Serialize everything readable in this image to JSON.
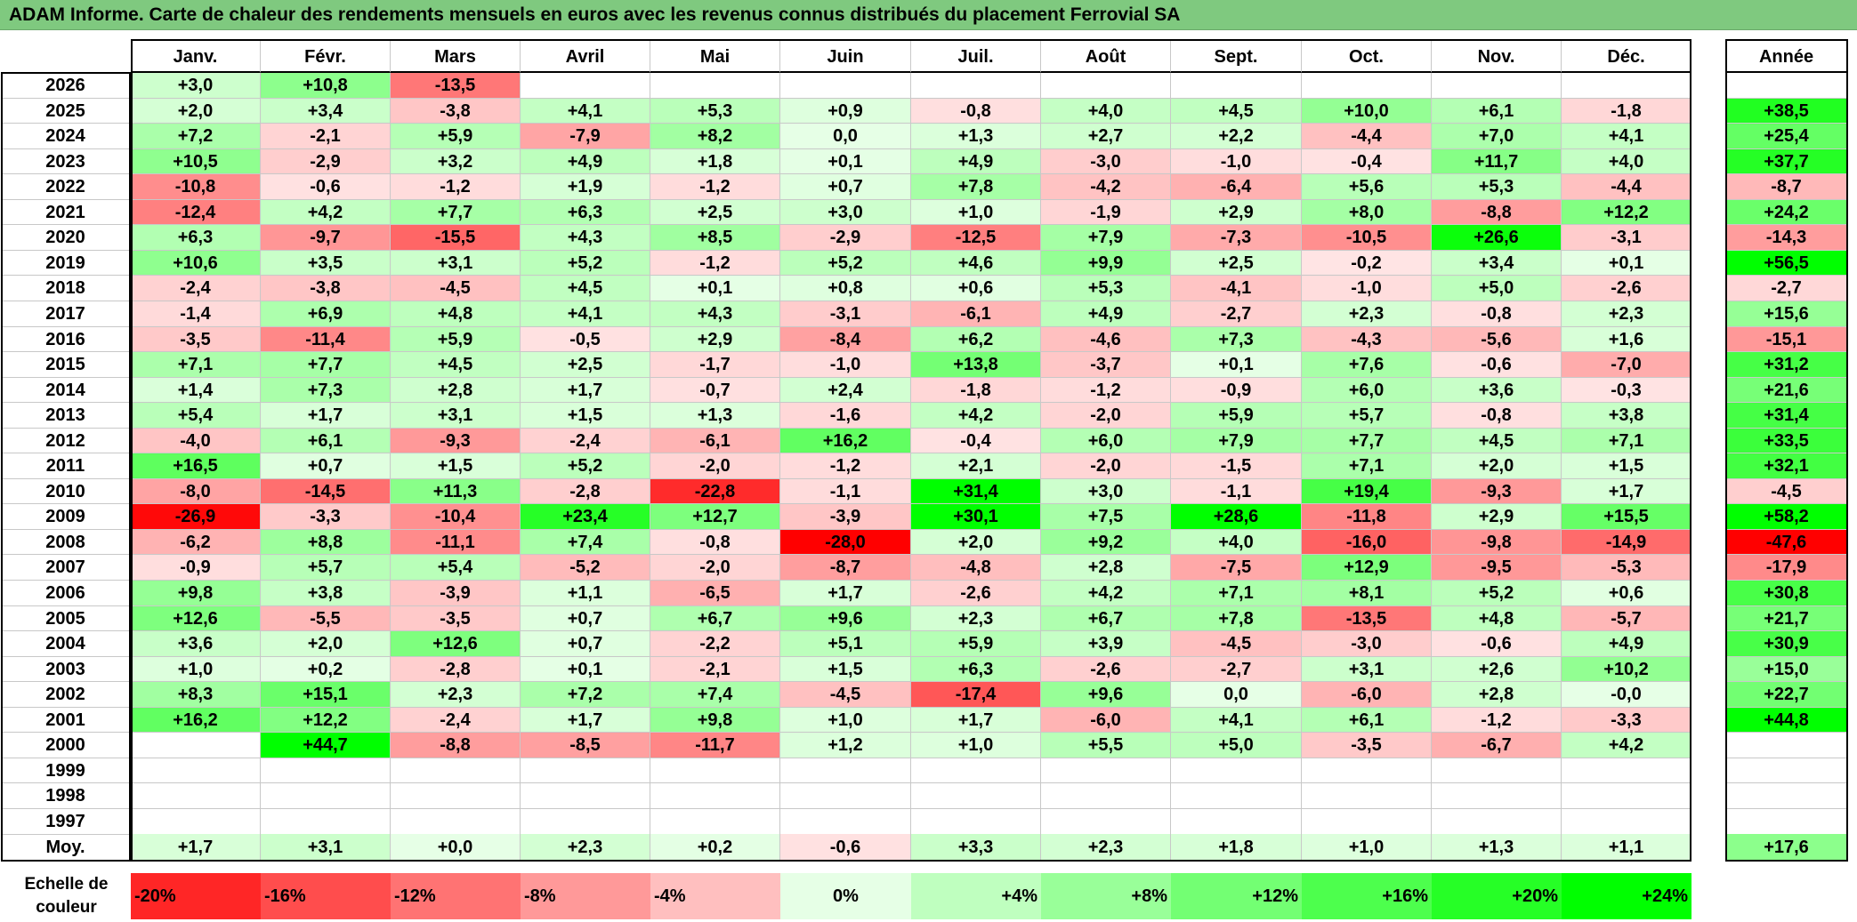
{
  "title": "ADAM Informe. Carte de chaleur des rendements mensuels en euros avec les revenus connus distribués du placement Ferrovial SA",
  "chart_data": {
    "type": "heatmap",
    "title": "ADAM Informe. Carte de chaleur des rendements mensuels en euros avec les revenus connus distribués du placement Ferrovial SA",
    "months": [
      "Janv.",
      "Févr.",
      "Mars",
      "Avril",
      "Mai",
      "Juin",
      "Juil.",
      "Août",
      "Sept.",
      "Oct.",
      "Nov.",
      "Déc."
    ],
    "year_header": "Année",
    "rows": [
      {
        "year": "2026",
        "values": [
          "+3,0",
          "+10,8",
          "-13,5",
          "",
          "",
          "",
          "",
          "",
          "",
          "",
          "",
          ""
        ],
        "annual": ""
      },
      {
        "year": "2025",
        "values": [
          "+2,0",
          "+3,4",
          "-3,8",
          "+4,1",
          "+5,3",
          "+0,9",
          "-0,8",
          "+4,0",
          "+4,5",
          "+10,0",
          "+6,1",
          "-1,8"
        ],
        "annual": "+38,5"
      },
      {
        "year": "2024",
        "values": [
          "+7,2",
          "-2,1",
          "+5,9",
          "-7,9",
          "+8,2",
          "0,0",
          "+1,3",
          "+2,7",
          "+2,2",
          "-4,4",
          "+7,0",
          "+4,1"
        ],
        "annual": "+25,4"
      },
      {
        "year": "2023",
        "values": [
          "+10,5",
          "-2,9",
          "+3,2",
          "+4,9",
          "+1,8",
          "+0,1",
          "+4,9",
          "-3,0",
          "-1,0",
          "-0,4",
          "+11,7",
          "+4,0"
        ],
        "annual": "+37,7"
      },
      {
        "year": "2022",
        "values": [
          "-10,8",
          "-0,6",
          "-1,2",
          "+1,9",
          "-1,2",
          "+0,7",
          "+7,8",
          "-4,2",
          "-6,4",
          "+5,6",
          "+5,3",
          "-4,4"
        ],
        "annual": "-8,7"
      },
      {
        "year": "2021",
        "values": [
          "-12,4",
          "+4,2",
          "+7,7",
          "+6,3",
          "+2,5",
          "+3,0",
          "+1,0",
          "-1,9",
          "+2,9",
          "+8,0",
          "-8,8",
          "+12,2"
        ],
        "annual": "+24,2"
      },
      {
        "year": "2020",
        "values": [
          "+6,3",
          "-9,7",
          "-15,5",
          "+4,3",
          "+8,5",
          "-2,9",
          "-12,5",
          "+7,9",
          "-7,3",
          "-10,5",
          "+26,6",
          "-3,1"
        ],
        "annual": "-14,3"
      },
      {
        "year": "2019",
        "values": [
          "+10,6",
          "+3,5",
          "+3,1",
          "+5,2",
          "-1,2",
          "+5,2",
          "+4,6",
          "+9,9",
          "+2,5",
          "-0,2",
          "+3,4",
          "+0,1"
        ],
        "annual": "+56,5"
      },
      {
        "year": "2018",
        "values": [
          "-2,4",
          "-3,8",
          "-4,5",
          "+4,5",
          "+0,1",
          "+0,8",
          "+0,6",
          "+5,3",
          "-4,1",
          "-1,0",
          "+5,0",
          "-2,6"
        ],
        "annual": "-2,7"
      },
      {
        "year": "2017",
        "values": [
          "-1,4",
          "+6,9",
          "+4,8",
          "+4,1",
          "+4,3",
          "-3,1",
          "-6,1",
          "+4,9",
          "-2,7",
          "+2,3",
          "-0,8",
          "+2,3"
        ],
        "annual": "+15,6"
      },
      {
        "year": "2016",
        "values": [
          "-3,5",
          "-11,4",
          "+5,9",
          "-0,5",
          "+2,9",
          "-8,4",
          "+6,2",
          "-4,6",
          "+7,3",
          "-4,3",
          "-5,6",
          "+1,6"
        ],
        "annual": "-15,1"
      },
      {
        "year": "2015",
        "values": [
          "+7,1",
          "+7,7",
          "+4,5",
          "+2,5",
          "-1,7",
          "-1,0",
          "+13,8",
          "-3,7",
          "+0,1",
          "+7,6",
          "-0,6",
          "-7,0"
        ],
        "annual": "+31,2"
      },
      {
        "year": "2014",
        "values": [
          "+1,4",
          "+7,3",
          "+2,8",
          "+1,7",
          "-0,7",
          "+2,4",
          "-1,8",
          "-1,2",
          "-0,9",
          "+6,0",
          "+3,6",
          "-0,3"
        ],
        "annual": "+21,6"
      },
      {
        "year": "2013",
        "values": [
          "+5,4",
          "+1,7",
          "+3,1",
          "+1,5",
          "+1,3",
          "-1,6",
          "+4,2",
          "-2,0",
          "+5,9",
          "+5,7",
          "-0,8",
          "+3,8"
        ],
        "annual": "+31,4"
      },
      {
        "year": "2012",
        "values": [
          "-4,0",
          "+6,1",
          "-9,3",
          "-2,4",
          "-6,1",
          "+16,2",
          "-0,4",
          "+6,0",
          "+7,9",
          "+7,7",
          "+4,5",
          "+7,1"
        ],
        "annual": "+33,5"
      },
      {
        "year": "2011",
        "values": [
          "+16,5",
          "+0,7",
          "+1,5",
          "+5,2",
          "-2,0",
          "-1,2",
          "+2,1",
          "-2,0",
          "-1,5",
          "+7,1",
          "+2,0",
          "+1,5"
        ],
        "annual": "+32,1"
      },
      {
        "year": "2010",
        "values": [
          "-8,0",
          "-14,5",
          "+11,3",
          "-2,8",
          "-22,8",
          "-1,1",
          "+31,4",
          "+3,0",
          "-1,1",
          "+19,4",
          "-9,3",
          "+1,7"
        ],
        "annual": "-4,5"
      },
      {
        "year": "2009",
        "values": [
          "-26,9",
          "-3,3",
          "-10,4",
          "+23,4",
          "+12,7",
          "-3,9",
          "+30,1",
          "+7,5",
          "+28,6",
          "-11,8",
          "+2,9",
          "+15,5"
        ],
        "annual": "+58,2"
      },
      {
        "year": "2008",
        "values": [
          "-6,2",
          "+8,8",
          "-11,1",
          "+7,4",
          "-0,8",
          "-28,0",
          "+2,0",
          "+9,2",
          "+4,0",
          "-16,0",
          "-9,8",
          "-14,9"
        ],
        "annual": "-47,6"
      },
      {
        "year": "2007",
        "values": [
          "-0,9",
          "+5,7",
          "+5,4",
          "-5,2",
          "-2,0",
          "-8,7",
          "-4,8",
          "+2,8",
          "-7,5",
          "+12,9",
          "-9,5",
          "-5,3"
        ],
        "annual": "-17,9"
      },
      {
        "year": "2006",
        "values": [
          "+9,8",
          "+3,8",
          "-3,9",
          "+1,1",
          "-6,5",
          "+1,7",
          "-2,6",
          "+4,2",
          "+7,1",
          "+8,1",
          "+5,2",
          "+0,6"
        ],
        "annual": "+30,8"
      },
      {
        "year": "2005",
        "values": [
          "+12,6",
          "-5,5",
          "-3,5",
          "+0,7",
          "+6,7",
          "+9,6",
          "+2,3",
          "+6,7",
          "+7,8",
          "-13,5",
          "+4,8",
          "-5,7"
        ],
        "annual": "+21,7"
      },
      {
        "year": "2004",
        "values": [
          "+3,6",
          "+2,0",
          "+12,6",
          "+0,7",
          "-2,2",
          "+5,1",
          "+5,9",
          "+3,9",
          "-4,5",
          "-3,0",
          "-0,6",
          "+4,9"
        ],
        "annual": "+30,9"
      },
      {
        "year": "2003",
        "values": [
          "+1,0",
          "+0,2",
          "-2,8",
          "+0,1",
          "-2,1",
          "+1,5",
          "+6,3",
          "-2,6",
          "-2,7",
          "+3,1",
          "+2,6",
          "+10,2"
        ],
        "annual": "+15,0"
      },
      {
        "year": "2002",
        "values": [
          "+8,3",
          "+15,1",
          "+2,3",
          "+7,2",
          "+7,4",
          "-4,5",
          "-17,4",
          "+9,6",
          "0,0",
          "-6,0",
          "+2,8",
          "-0,0"
        ],
        "annual": "+22,7"
      },
      {
        "year": "2001",
        "values": [
          "+16,2",
          "+12,2",
          "-2,4",
          "+1,7",
          "+9,8",
          "+1,0",
          "+1,7",
          "-6,0",
          "+4,1",
          "+6,1",
          "-1,2",
          "-3,3"
        ],
        "annual": "+44,8"
      },
      {
        "year": "2000",
        "values": [
          "",
          "+44,7",
          "-8,8",
          "-8,5",
          "-11,7",
          "+1,2",
          "+1,0",
          "+5,5",
          "+5,0",
          "-3,5",
          "-6,7",
          "+4,2"
        ],
        "annual": ""
      },
      {
        "year": "1999",
        "values": [
          "",
          "",
          "",
          "",
          "",
          "",
          "",
          "",
          "",
          "",
          "",
          ""
        ],
        "annual": ""
      },
      {
        "year": "1998",
        "values": [
          "",
          "",
          "",
          "",
          "",
          "",
          "",
          "",
          "",
          "",
          "",
          ""
        ],
        "annual": ""
      },
      {
        "year": "1997",
        "values": [
          "",
          "",
          "",
          "",
          "",
          "",
          "",
          "",
          "",
          "",
          "",
          ""
        ],
        "annual": ""
      }
    ],
    "average": {
      "label": "Moy.",
      "values": [
        "+1,7",
        "+3,1",
        "+0,0",
        "+2,3",
        "+0,2",
        "-0,6",
        "+3,3",
        "+2,3",
        "+1,8",
        "+1,0",
        "+1,3",
        "+1,1"
      ],
      "annual": "+17,6"
    },
    "color_scale": {
      "label": "Echelle de couleur",
      "steps": [
        "-20%",
        "-16%",
        "-12%",
        "-8%",
        "-4%",
        "0%",
        "+4%",
        "+8%",
        "+12%",
        "+16%",
        "+20%",
        "+24%"
      ]
    },
    "colors": {
      "negative": "#ff0000",
      "positive": "#00ff00",
      "neutral": "#ffffff",
      "title_bar": "#7fc97f"
    }
  }
}
